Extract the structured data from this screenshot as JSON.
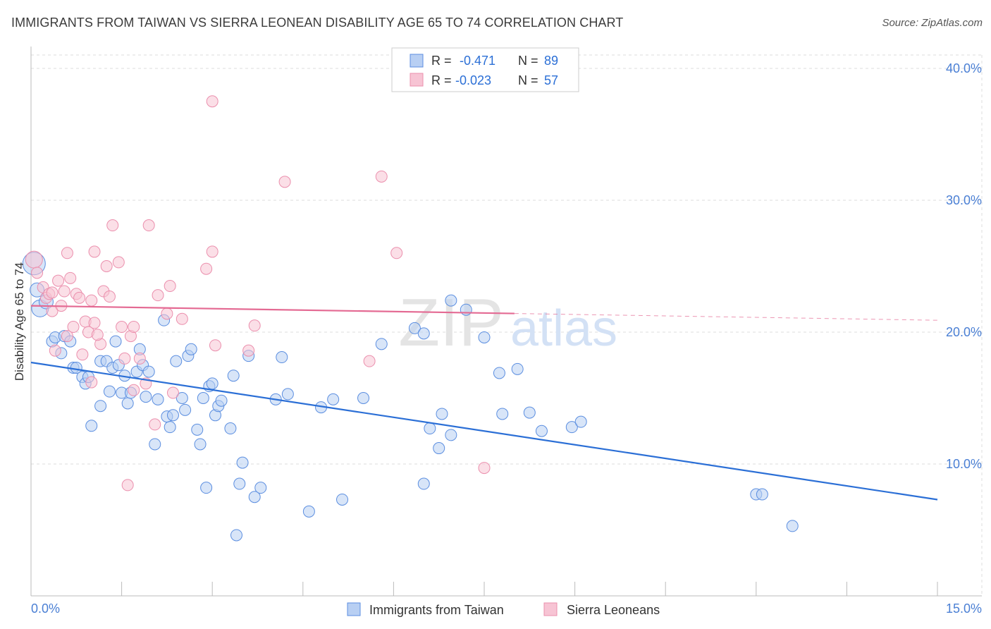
{
  "title": "IMMIGRANTS FROM TAIWAN VS SIERRA LEONEAN DISABILITY AGE 65 TO 74 CORRELATION CHART",
  "source": "Source: ZipAtlas.com",
  "colors": {
    "blue": "#5b8ee0",
    "blue_fill": "#b8cff3",
    "blue_line": "#2b6fd6",
    "pink": "#eb8fad",
    "pink_fill": "#f7c4d4",
    "pink_line": "#e46a93",
    "tick_label": "#4a7fd4",
    "grid": "#dddddd"
  },
  "legend_top": {
    "rows": [
      {
        "r_label": "R =",
        "r_value": "-0.471",
        "n_label": "N =",
        "n_value": "89"
      },
      {
        "r_label": "R =",
        "r_value": "-0.023",
        "n_label": "N =",
        "n_value": "57"
      }
    ]
  },
  "watermark": {
    "zip": "ZIP",
    "atlas": "atlas"
  },
  "chart_data": {
    "type": "scatter",
    "ylabel": "Disability Age 65 to 74",
    "xlim": [
      0,
      15
    ],
    "ylim": [
      0,
      40
    ],
    "x_tick_labels": [
      "0.0%",
      "15.0%"
    ],
    "y_ticks": [
      10,
      20,
      30,
      40
    ],
    "y_tick_labels": [
      "10.0%",
      "20.0%",
      "30.0%",
      "40.0%"
    ],
    "grid": true,
    "legend_position": "bottom",
    "series": [
      {
        "name": "Immigrants from Taiwan",
        "color": "blue",
        "trend": {
          "x": [
            0,
            15
          ],
          "y": [
            17.7,
            7.3
          ],
          "dashed_from": null
        },
        "points": [
          [
            0.05,
            25.2,
            16
          ],
          [
            0.1,
            23.2,
            10
          ],
          [
            0.15,
            21.8,
            12
          ],
          [
            0.25,
            22.3,
            10
          ],
          [
            0.35,
            19.3,
            8
          ],
          [
            0.4,
            19.6,
            8
          ],
          [
            0.5,
            18.4,
            8
          ],
          [
            0.55,
            19.7,
            8
          ],
          [
            0.65,
            19.3,
            8
          ],
          [
            0.7,
            17.3,
            8
          ],
          [
            0.75,
            17.3,
            8
          ],
          [
            0.85,
            16.6,
            8
          ],
          [
            0.9,
            16.1,
            8
          ],
          [
            0.95,
            16.6,
            8
          ],
          [
            1.0,
            12.9,
            8
          ],
          [
            1.15,
            17.8,
            8
          ],
          [
            1.15,
            14.4,
            8
          ],
          [
            1.25,
            17.8,
            8
          ],
          [
            1.3,
            15.5,
            8
          ],
          [
            1.35,
            17.3,
            8
          ],
          [
            1.4,
            19.3,
            8
          ],
          [
            1.45,
            17.5,
            8
          ],
          [
            1.5,
            15.4,
            8
          ],
          [
            1.55,
            16.7,
            8
          ],
          [
            1.6,
            14.6,
            8
          ],
          [
            1.65,
            15.4,
            8
          ],
          [
            1.75,
            17.0,
            8
          ],
          [
            1.8,
            18.7,
            8
          ],
          [
            1.85,
            17.5,
            8
          ],
          [
            1.9,
            15.1,
            8
          ],
          [
            1.95,
            17.0,
            8
          ],
          [
            2.05,
            11.5,
            8
          ],
          [
            2.1,
            14.9,
            8
          ],
          [
            2.2,
            20.9,
            8
          ],
          [
            2.25,
            13.6,
            8
          ],
          [
            2.3,
            12.8,
            8
          ],
          [
            2.35,
            13.7,
            8
          ],
          [
            2.4,
            17.8,
            8
          ],
          [
            2.5,
            15.0,
            8
          ],
          [
            2.55,
            14.1,
            8
          ],
          [
            2.6,
            18.2,
            8
          ],
          [
            2.65,
            18.7,
            8
          ],
          [
            2.75,
            12.6,
            8
          ],
          [
            2.8,
            11.5,
            8
          ],
          [
            2.85,
            15.0,
            8
          ],
          [
            2.9,
            8.2,
            8
          ],
          [
            2.95,
            15.9,
            8
          ],
          [
            3.0,
            16.1,
            8
          ],
          [
            3.05,
            13.7,
            8
          ],
          [
            3.1,
            14.4,
            8
          ],
          [
            3.15,
            14.8,
            8
          ],
          [
            3.3,
            12.7,
            8
          ],
          [
            3.35,
            16.7,
            8
          ],
          [
            3.4,
            4.6,
            8
          ],
          [
            3.45,
            8.5,
            8
          ],
          [
            3.5,
            10.1,
            8
          ],
          [
            3.6,
            18.2,
            8
          ],
          [
            3.7,
            7.5,
            8
          ],
          [
            3.8,
            8.2,
            8
          ],
          [
            4.05,
            14.9,
            8
          ],
          [
            4.15,
            18.1,
            8
          ],
          [
            4.25,
            15.3,
            8
          ],
          [
            4.6,
            6.4,
            8
          ],
          [
            4.8,
            14.3,
            8
          ],
          [
            5.0,
            14.9,
            8
          ],
          [
            5.15,
            7.3,
            8
          ],
          [
            5.5,
            15.0,
            8
          ],
          [
            5.8,
            19.1,
            8
          ],
          [
            6.35,
            20.3,
            8
          ],
          [
            6.5,
            19.9,
            8
          ],
          [
            6.5,
            8.5,
            8
          ],
          [
            6.6,
            12.7,
            8
          ],
          [
            6.75,
            11.2,
            8
          ],
          [
            6.8,
            13.8,
            8
          ],
          [
            6.95,
            22.4,
            8
          ],
          [
            6.95,
            12.2,
            8
          ],
          [
            7.2,
            21.7,
            8
          ],
          [
            7.5,
            19.6,
            8
          ],
          [
            7.75,
            16.9,
            8
          ],
          [
            7.8,
            13.8,
            8
          ],
          [
            8.05,
            17.2,
            8
          ],
          [
            8.25,
            13.9,
            8
          ],
          [
            8.45,
            12.5,
            8
          ],
          [
            8.95,
            12.8,
            8
          ],
          [
            9.1,
            13.2,
            8
          ],
          [
            12.0,
            7.7,
            8
          ],
          [
            12.1,
            7.7,
            8
          ],
          [
            12.6,
            5.3,
            8
          ]
        ]
      },
      {
        "name": "Sierra Leoneans",
        "color": "pink",
        "trend": {
          "x": [
            0,
            15
          ],
          "y": [
            22.0,
            20.9
          ],
          "dashed_from": 8.0
        },
        "points": [
          [
            0.05,
            25.5,
            12
          ],
          [
            0.1,
            24.5,
            8
          ],
          [
            0.2,
            23.4,
            8
          ],
          [
            0.25,
            22.6,
            8
          ],
          [
            0.3,
            22.9,
            8
          ],
          [
            0.35,
            21.6,
            8
          ],
          [
            0.4,
            18.6,
            8
          ],
          [
            0.45,
            23.9,
            8
          ],
          [
            0.55,
            23.1,
            8
          ],
          [
            0.6,
            26.0,
            8
          ],
          [
            0.6,
            19.7,
            8
          ],
          [
            0.65,
            24.1,
            8
          ],
          [
            0.7,
            20.4,
            8
          ],
          [
            0.75,
            22.9,
            8
          ],
          [
            0.8,
            22.6,
            8
          ],
          [
            0.85,
            18.3,
            8
          ],
          [
            0.9,
            20.8,
            8
          ],
          [
            0.95,
            20.0,
            8
          ],
          [
            1.0,
            22.4,
            8
          ],
          [
            1.0,
            16.2,
            8
          ],
          [
            1.05,
            26.1,
            8
          ],
          [
            1.05,
            20.7,
            8
          ],
          [
            1.15,
            19.1,
            8
          ],
          [
            1.2,
            23.1,
            8
          ],
          [
            1.25,
            25.0,
            8
          ],
          [
            1.3,
            22.7,
            8
          ],
          [
            1.35,
            28.1,
            8
          ],
          [
            1.45,
            25.3,
            8
          ],
          [
            1.5,
            20.4,
            8
          ],
          [
            1.55,
            18.0,
            8
          ],
          [
            1.6,
            8.4,
            8
          ],
          [
            1.65,
            19.7,
            8
          ],
          [
            1.7,
            20.4,
            8
          ],
          [
            1.7,
            15.6,
            8
          ],
          [
            1.8,
            18.0,
            8
          ],
          [
            1.9,
            16.1,
            8
          ],
          [
            1.95,
            28.1,
            8
          ],
          [
            2.05,
            13.0,
            8
          ],
          [
            2.1,
            22.8,
            8
          ],
          [
            2.25,
            21.4,
            8
          ],
          [
            2.3,
            23.5,
            8
          ],
          [
            2.35,
            15.4,
            8
          ],
          [
            2.5,
            21.0,
            8
          ],
          [
            2.9,
            24.8,
            8
          ],
          [
            3.0,
            37.5,
            8
          ],
          [
            3.0,
            26.1,
            8
          ],
          [
            3.05,
            19.0,
            8
          ],
          [
            3.6,
            18.6,
            8
          ],
          [
            3.7,
            20.5,
            8
          ],
          [
            4.2,
            31.4,
            8
          ],
          [
            5.6,
            17.8,
            8
          ],
          [
            5.8,
            31.8,
            8
          ],
          [
            6.05,
            26.0,
            8
          ],
          [
            7.5,
            9.7,
            8
          ],
          [
            0.35,
            23.0,
            8
          ],
          [
            0.5,
            22.0,
            8
          ],
          [
            1.1,
            19.8,
            8
          ]
        ]
      }
    ]
  }
}
